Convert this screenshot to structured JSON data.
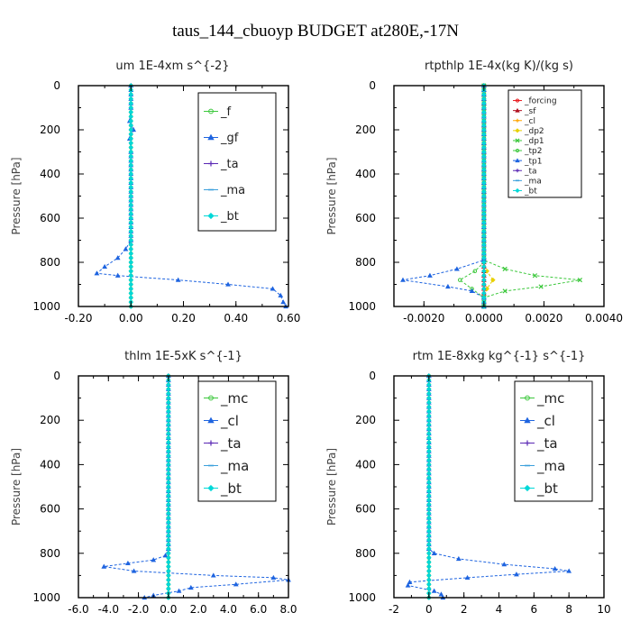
{
  "figure": {
    "title": "taus_144_cbuoyp  BUDGET at280E,-17N"
  },
  "colors": {
    "red": "#e8181c",
    "darkred": "#b01020",
    "orange": "#ffa500",
    "yellow": "#e8d000",
    "green": "#3cc83c",
    "blue": "#1e64e0",
    "purple": "#5a28b4",
    "skyblue": "#3ca0dc",
    "cyan": "#00d8d8"
  },
  "chart_data": [
    {
      "type": "line",
      "title": "um   1E-4xm s^{-2}",
      "xlabel": "",
      "ylabel": "Pressure [hPa]",
      "xlim": [
        -0.2,
        0.6
      ],
      "ylim": [
        1000,
        0
      ],
      "xticks": [
        "-0.20",
        "0.00",
        "0.20",
        "0.40",
        "0.60"
      ],
      "xtick_values": [
        -0.2,
        0.0,
        0.2,
        0.4,
        0.6
      ],
      "yticks": [
        "0",
        "200",
        "400",
        "600",
        "800",
        "1000"
      ],
      "ytick_values": [
        0,
        200,
        400,
        600,
        800,
        1000
      ],
      "legend": {
        "position": "top-right",
        "font_size": 13
      },
      "series": [
        {
          "name": "_f",
          "color": "green",
          "marker": "circle",
          "values": [
            [
              0,
              0
            ],
            [
              0,
              1000
            ]
          ]
        },
        {
          "name": "_gf",
          "color": "blue",
          "marker": "tri",
          "values": [
            [
              0,
              0
            ],
            [
              0,
              100
            ],
            [
              -0.005,
              160
            ],
            [
              0.01,
              200
            ],
            [
              -0.005,
              240
            ],
            [
              0,
              300
            ],
            [
              0,
              700
            ],
            [
              -0.02,
              740
            ],
            [
              -0.05,
              780
            ],
            [
              -0.1,
              820
            ],
            [
              -0.13,
              850
            ],
            [
              -0.05,
              860
            ],
            [
              0.18,
              880
            ],
            [
              0.37,
              900
            ],
            [
              0.54,
              920
            ],
            [
              0.57,
              950
            ],
            [
              0.58,
              980
            ],
            [
              0.59,
              1000
            ]
          ]
        },
        {
          "name": "_ta",
          "color": "purple",
          "marker": "plus",
          "values": [
            [
              0,
              0
            ],
            [
              0,
              1000
            ]
          ]
        },
        {
          "name": "_ma",
          "color": "skyblue",
          "marker": "dash",
          "values": [
            [
              0,
              0
            ],
            [
              0,
              1000
            ]
          ]
        },
        {
          "name": "_bt",
          "color": "cyan",
          "marker": "diamond",
          "values": [
            [
              0,
              0
            ],
            [
              0,
              1000
            ]
          ]
        }
      ]
    },
    {
      "type": "line",
      "title": "rtpthlp   1E-4x(kg K)/(kg s)",
      "xlabel": "",
      "ylabel": "Pressure [hPa]",
      "xlim": [
        -0.003,
        0.004
      ],
      "ylim": [
        1000,
        0
      ],
      "xticks": [
        "-0.0020",
        "0.0000",
        "0.0020",
        "0.0040"
      ],
      "xtick_values": [
        -0.002,
        0.0,
        0.002,
        0.004
      ],
      "yticks": [
        "0",
        "200",
        "400",
        "600",
        "800",
        "1000"
      ],
      "ytick_values": [
        0,
        200,
        400,
        600,
        800,
        1000
      ],
      "legend": {
        "position": "top-right",
        "font_size": 9
      },
      "series": [
        {
          "name": "_forcing",
          "color": "red",
          "marker": "circle",
          "values": [
            [
              0,
              0
            ],
            [
              0,
              1000
            ]
          ]
        },
        {
          "name": "_sf",
          "color": "darkred",
          "marker": "tri",
          "values": [
            [
              0,
              0
            ],
            [
              0,
              1000
            ]
          ]
        },
        {
          "name": "_cl",
          "color": "orange",
          "marker": "plus",
          "values": [
            [
              0,
              0
            ],
            [
              0,
              1000
            ]
          ]
        },
        {
          "name": "_dp2",
          "color": "yellow",
          "marker": "diamond",
          "values": [
            [
              0,
              0
            ],
            [
              0,
              800
            ],
            [
              0.0001,
              840
            ],
            [
              0.0003,
              880
            ],
            [
              0.0001,
              920
            ],
            [
              0,
              960
            ],
            [
              0,
              1000
            ]
          ]
        },
        {
          "name": "_dp1",
          "color": "green",
          "marker": "x",
          "values": [
            [
              0,
              0
            ],
            [
              0,
              790
            ],
            [
              0.0007,
              830
            ],
            [
              0.0017,
              860
            ],
            [
              0.0032,
              880
            ],
            [
              0.0019,
              910
            ],
            [
              0.0007,
              930
            ],
            [
              0,
              960
            ],
            [
              0,
              1000
            ]
          ]
        },
        {
          "name": "_tp2",
          "color": "green",
          "marker": "circle",
          "values": [
            [
              0,
              0
            ],
            [
              0,
              800
            ],
            [
              -0.0003,
              840
            ],
            [
              -0.0008,
              880
            ],
            [
              -0.0004,
              920
            ],
            [
              0,
              960
            ],
            [
              0,
              1000
            ]
          ]
        },
        {
          "name": "_tp1",
          "color": "blue",
          "marker": "tri",
          "values": [
            [
              0,
              0
            ],
            [
              0,
              790
            ],
            [
              -0.0009,
              830
            ],
            [
              -0.0018,
              860
            ],
            [
              -0.0027,
              880
            ],
            [
              -0.0012,
              910
            ],
            [
              -0.0004,
              930
            ],
            [
              0,
              960
            ],
            [
              0,
              1000
            ]
          ]
        },
        {
          "name": "_ta",
          "color": "purple",
          "marker": "plus",
          "values": [
            [
              0,
              0
            ],
            [
              0,
              1000
            ]
          ]
        },
        {
          "name": "_ma",
          "color": "skyblue",
          "marker": "dash",
          "values": [
            [
              0,
              0
            ],
            [
              0,
              1000
            ]
          ]
        },
        {
          "name": "_bt",
          "color": "cyan",
          "marker": "diamond",
          "values": [
            [
              0,
              0
            ],
            [
              0,
              1000
            ]
          ]
        }
      ]
    },
    {
      "type": "line",
      "title": "thlm   1E-5xK s^{-1}",
      "xlabel": "",
      "ylabel": "Pressure [hPa]",
      "xlim": [
        -6,
        8
      ],
      "ylim": [
        1000,
        0
      ],
      "xticks": [
        "-6.0",
        "-4.0",
        "-2.0",
        "0.0",
        "2.0",
        "4.0",
        "6.0",
        "8.0"
      ],
      "xtick_values": [
        -6,
        -4,
        -2,
        0,
        2,
        4,
        6,
        8
      ],
      "yticks": [
        "0",
        "200",
        "400",
        "600",
        "800",
        "1000"
      ],
      "ytick_values": [
        0,
        200,
        400,
        600,
        800,
        1000
      ],
      "legend": {
        "position": "top-right",
        "font_size": 15
      },
      "series": [
        {
          "name": "_mc",
          "color": "green",
          "marker": "circle",
          "values": [
            [
              0,
              0
            ],
            [
              0,
              1000
            ]
          ]
        },
        {
          "name": "_cl",
          "color": "blue",
          "marker": "tri",
          "values": [
            [
              0,
              0
            ],
            [
              0,
              780
            ],
            [
              -0.2,
              810
            ],
            [
              -1.0,
              830
            ],
            [
              -2.7,
              845
            ],
            [
              -4.3,
              860
            ],
            [
              -2.3,
              880
            ],
            [
              3.0,
              900
            ],
            [
              7.0,
              910
            ],
            [
              8.0,
              920
            ],
            [
              4.5,
              940
            ],
            [
              1.5,
              955
            ],
            [
              0.7,
              970
            ],
            [
              -1.0,
              990
            ],
            [
              -1.6,
              1000
            ]
          ]
        },
        {
          "name": "_ta",
          "color": "purple",
          "marker": "plus",
          "values": [
            [
              0,
              0
            ],
            [
              0,
              1000
            ]
          ]
        },
        {
          "name": "_ma",
          "color": "skyblue",
          "marker": "dash",
          "values": [
            [
              0,
              0
            ],
            [
              0,
              1000
            ]
          ]
        },
        {
          "name": "_bt",
          "color": "cyan",
          "marker": "diamond",
          "values": [
            [
              0,
              0
            ],
            [
              0,
              1000
            ]
          ]
        }
      ]
    },
    {
      "type": "line",
      "title": "rtm   1E-8xkg kg^{-1} s^{-1}",
      "xlabel": "",
      "ylabel": "Pressure [hPa]",
      "xlim": [
        -2,
        10
      ],
      "ylim": [
        1000,
        0
      ],
      "xticks": [
        "-2",
        "0",
        "2",
        "4",
        "6",
        "8",
        "10"
      ],
      "xtick_values": [
        -2,
        0,
        2,
        4,
        6,
        8,
        10
      ],
      "yticks": [
        "0",
        "200",
        "400",
        "600",
        "800",
        "1000"
      ],
      "ytick_values": [
        0,
        200,
        400,
        600,
        800,
        1000
      ],
      "legend": {
        "position": "top-right",
        "font_size": 15
      },
      "series": [
        {
          "name": "_mc",
          "color": "green",
          "marker": "circle",
          "values": [
            [
              0,
              0
            ],
            [
              0,
              1000
            ]
          ]
        },
        {
          "name": "_cl",
          "color": "blue",
          "marker": "tri",
          "values": [
            [
              0,
              0
            ],
            [
              0,
              780
            ],
            [
              0.3,
              800
            ],
            [
              1.7,
              825
            ],
            [
              4.3,
              850
            ],
            [
              7.2,
              870
            ],
            [
              8.0,
              880
            ],
            [
              5.0,
              895
            ],
            [
              2.2,
              910
            ],
            [
              -1.1,
              930
            ],
            [
              -1.2,
              945
            ],
            [
              0.3,
              970
            ],
            [
              0.7,
              985
            ],
            [
              0.8,
              1000
            ]
          ]
        },
        {
          "name": "_ta",
          "color": "purple",
          "marker": "plus",
          "values": [
            [
              0,
              0
            ],
            [
              0,
              1000
            ]
          ]
        },
        {
          "name": "_ma",
          "color": "skyblue",
          "marker": "dash",
          "values": [
            [
              0,
              0
            ],
            [
              0,
              1000
            ]
          ]
        },
        {
          "name": "_bt",
          "color": "cyan",
          "marker": "diamond",
          "values": [
            [
              0,
              0
            ],
            [
              0,
              1000
            ]
          ]
        }
      ]
    }
  ]
}
